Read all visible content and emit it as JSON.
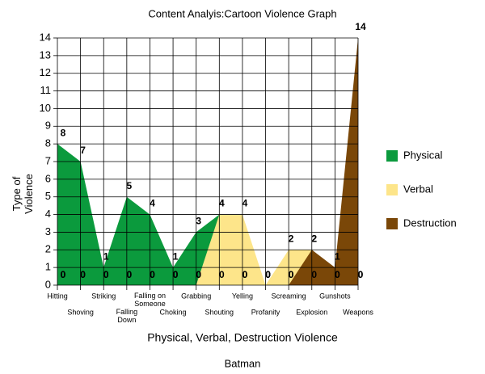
{
  "chart_data": {
    "type": "area",
    "title": "Content Analyis:Cartoon Violence Graph",
    "subtitle": "Batman",
    "x_label": "Physical, Verbal, Destruction Violence",
    "y_label": "Type of Violence",
    "categories": [
      "Hitting",
      "Shoving",
      "Striking",
      "Falling Down",
      "Falling on Someone",
      "Choking",
      "Grabbing",
      "Shouting",
      "Yelling",
      "Profanity",
      "Screaming",
      "Explosion",
      "Gunshots",
      "Weapons"
    ],
    "series": [
      {
        "name": "Physical",
        "color": "#0b9a3d",
        "values": [
          8,
          7,
          1,
          5,
          4,
          1,
          3,
          4,
          0,
          0,
          0,
          0,
          0,
          0
        ]
      },
      {
        "name": "Verbal",
        "color": "#fde58a",
        "values": [
          0,
          0,
          0,
          0,
          0,
          0,
          0,
          4,
          4,
          0,
          2,
          2,
          0,
          0
        ]
      },
      {
        "name": "Destruction",
        "color": "#7a4708",
        "values": [
          0,
          0,
          0,
          0,
          0,
          0,
          0,
          0,
          0,
          0,
          0,
          2,
          1,
          14
        ]
      }
    ],
    "ylim": [
      0,
      14
    ],
    "yticks": [
      0,
      1,
      2,
      3,
      4,
      5,
      6,
      7,
      8,
      9,
      10,
      11,
      12,
      13,
      14
    ],
    "grid": true,
    "legend": "right"
  }
}
